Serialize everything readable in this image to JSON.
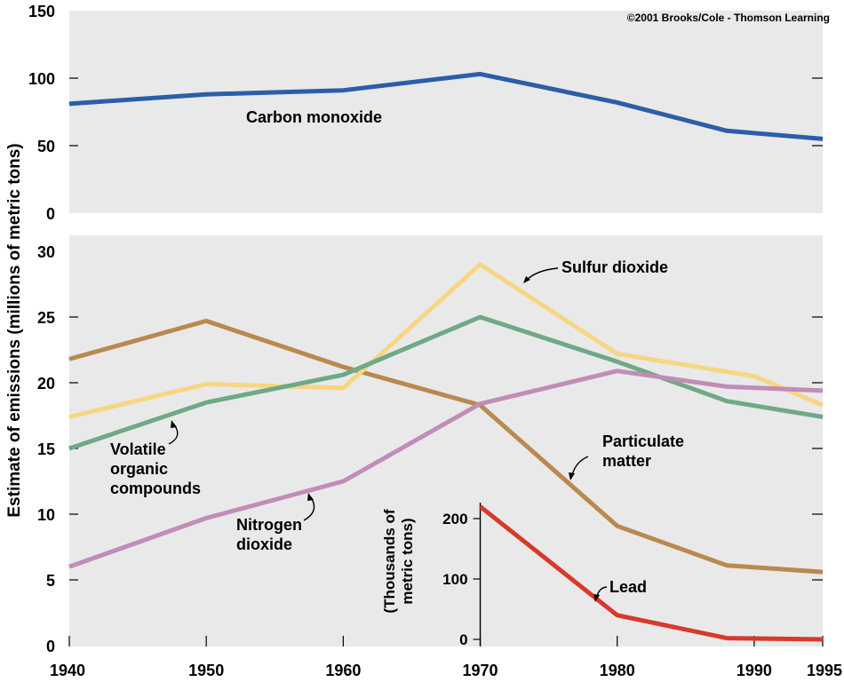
{
  "copyright": "©2001 Brooks/Cole - Thomson Learning",
  "ylabel": "Estimate of emissions (millions of metric tons)",
  "chart_data": [
    {
      "type": "line",
      "panel": "top",
      "xlim": [
        1940,
        1995
      ],
      "ylim": [
        0,
        150
      ],
      "yticks": [
        0,
        50,
        100,
        150
      ],
      "grid": false,
      "series": [
        {
          "name": "Carbon monoxide",
          "color": "#2a5fa8",
          "x": [
            1940,
            1950,
            1960,
            1970,
            1980,
            1988,
            1995
          ],
          "y": [
            81,
            88,
            91,
            103,
            82,
            61,
            55
          ]
        }
      ]
    },
    {
      "type": "line",
      "panel": "bottom",
      "xlim": [
        1940,
        1995
      ],
      "ylim": [
        0,
        30
      ],
      "xticks": [
        1940,
        1950,
        1960,
        1970,
        1980,
        1990,
        1995
      ],
      "yticks": [
        0,
        5,
        10,
        15,
        20,
        25,
        30
      ],
      "grid": false,
      "series": [
        {
          "name": "Particulate matter",
          "label_lines": [
            "Particulate",
            "matter"
          ],
          "color": "#b9894f",
          "x": [
            1940,
            1950,
            1960,
            1970,
            1980,
            1988,
            1995
          ],
          "y": [
            21.8,
            24.7,
            21.2,
            18.3,
            9.1,
            6.1,
            5.6
          ]
        },
        {
          "name": "Sulfur dioxide",
          "label_lines": [
            "Sulfur dioxide"
          ],
          "color": "#f7d681",
          "x": [
            1940,
            1950,
            1960,
            1970,
            1980,
            1990,
            1995
          ],
          "y": [
            17.4,
            19.9,
            19.6,
            29.0,
            22.2,
            20.5,
            18.3
          ]
        },
        {
          "name": "Volatile organic compounds",
          "label_lines": [
            "Volatile",
            "organic",
            "compounds"
          ],
          "color": "#6fa985",
          "x": [
            1940,
            1950,
            1960,
            1970,
            1980,
            1988,
            1995
          ],
          "y": [
            15.0,
            18.5,
            20.6,
            25.0,
            21.6,
            18.6,
            17.4
          ]
        },
        {
          "name": "Nitrogen dioxide",
          "label_lines": [
            "Nitrogen",
            "dioxide"
          ],
          "color": "#c18db8",
          "x": [
            1940,
            1950,
            1960,
            1970,
            1980,
            1988,
            1995
          ],
          "y": [
            6.0,
            9.7,
            12.5,
            18.4,
            20.9,
            19.7,
            19.4
          ]
        }
      ]
    },
    {
      "type": "line",
      "panel": "inset",
      "ylabel_lines": [
        "(Thousands of",
        "metric tons)"
      ],
      "xlim": [
        1970,
        1995
      ],
      "ylim": [
        0,
        200
      ],
      "yticks": [
        0,
        100,
        200
      ],
      "grid": false,
      "series": [
        {
          "name": "Lead",
          "label_lines": [
            "Lead"
          ],
          "color": "#d8392b",
          "x": [
            1970,
            1980,
            1988,
            1995
          ],
          "y": [
            220,
            40,
            2,
            0
          ]
        }
      ]
    }
  ]
}
